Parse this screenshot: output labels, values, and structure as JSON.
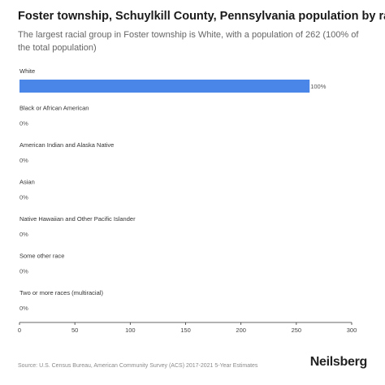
{
  "header": {
    "title": "Foster township, Schuylkill County, Pennsylvania population by race",
    "subtitle": "The largest racial group in Foster township is White, with a population of 262 (100% of the total population)"
  },
  "footer": {
    "source": "Source: U.S. Census Bureau, American Community Survey (ACS) 2017-2021 5-Year Estimates",
    "brand": "Neilsberg"
  },
  "chart_data": {
    "type": "bar",
    "orientation": "horizontal",
    "categories": [
      "White",
      "Black or African American",
      "American Indian and Alaska Native",
      "Asian",
      "Native Hawaiian and Other Pacific Islander",
      "Some other race",
      "Two or more races (multiracial)"
    ],
    "values": [
      262,
      0,
      0,
      0,
      0,
      0,
      0
    ],
    "data_labels": [
      "100%",
      "0%",
      "0%",
      "0%",
      "0%",
      "0%",
      "0%"
    ],
    "xlim": [
      0,
      300
    ],
    "xticks": [
      0,
      50,
      100,
      150,
      200,
      250,
      300
    ],
    "grid": false,
    "bar_color": "#4a86e8"
  }
}
